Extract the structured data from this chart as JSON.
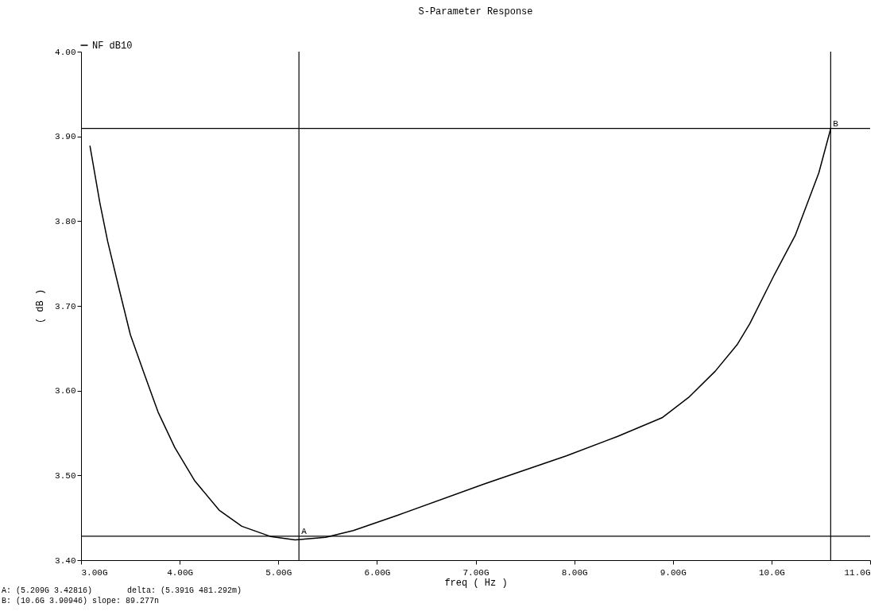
{
  "chart_data": {
    "type": "line",
    "title": "S-Parameter Response",
    "xlabel": "freq ( Hz )",
    "ylabel": "( dB )",
    "xlim": [
      3,
      11
    ],
    "ylim": [
      3.4,
      4.0
    ],
    "xticks": [
      {
        "value": 3,
        "label": "3.00G"
      },
      {
        "value": 4,
        "label": "4.00G"
      },
      {
        "value": 5,
        "label": "5.00G"
      },
      {
        "value": 6,
        "label": "6.00G"
      },
      {
        "value": 7,
        "label": "7.00G"
      },
      {
        "value": 8,
        "label": "8.00G"
      },
      {
        "value": 9,
        "label": "9.00G"
      },
      {
        "value": 10,
        "label": "10.0G"
      },
      {
        "value": 11,
        "label": "11.0G"
      }
    ],
    "yticks": [
      {
        "value": 3.4,
        "label": "3.40"
      },
      {
        "value": 3.5,
        "label": "3.50"
      },
      {
        "value": 3.6,
        "label": "3.60"
      },
      {
        "value": 3.7,
        "label": "3.70"
      },
      {
        "value": 3.8,
        "label": "3.80"
      },
      {
        "value": 3.9,
        "label": "3.90"
      },
      {
        "value": 4.0,
        "label": "4.00"
      }
    ],
    "grid": false,
    "legend": "top left",
    "marker": "none",
    "line_style": "solid",
    "series": [
      {
        "name": "NF dB10",
        "color": "#000000",
        "x": [
          3.09,
          3.19,
          3.27,
          3.39,
          3.5,
          3.64,
          3.78,
          3.95,
          4.15,
          4.4,
          4.63,
          4.92,
          5.17,
          5.48,
          5.76,
          6.21,
          7.09,
          7.92,
          8.44,
          8.89,
          9.16,
          9.43,
          9.65,
          9.78,
          10.03,
          10.24,
          10.48,
          10.6
        ],
        "values": [
          3.889,
          3.822,
          3.776,
          3.718,
          3.666,
          3.62,
          3.575,
          3.533,
          3.494,
          3.459,
          3.44,
          3.428,
          3.424,
          3.427,
          3.435,
          3.453,
          3.49,
          3.523,
          3.546,
          3.568,
          3.592,
          3.623,
          3.654,
          3.679,
          3.737,
          3.783,
          3.857,
          3.909
        ]
      }
    ],
    "ref_lines": [
      {
        "axis": "x",
        "value": 5.209,
        "color": "#000000"
      },
      {
        "axis": "y",
        "value": 3.42816,
        "color": "#000000"
      },
      {
        "axis": "x",
        "value": 10.6,
        "color": "#000000"
      },
      {
        "axis": "y",
        "value": 3.90946,
        "color": "#000000"
      }
    ],
    "annotations": [
      {
        "text": "A",
        "x": 5.209,
        "y": 3.42816
      },
      {
        "text": "B",
        "x": 10.6,
        "y": 3.90946
      },
      "A: (5.209G 3.42816)",
      "delta: (5.391G 481.292m)",
      "B: (10.6G 3.90946) slope: 89.277n"
    ]
  }
}
